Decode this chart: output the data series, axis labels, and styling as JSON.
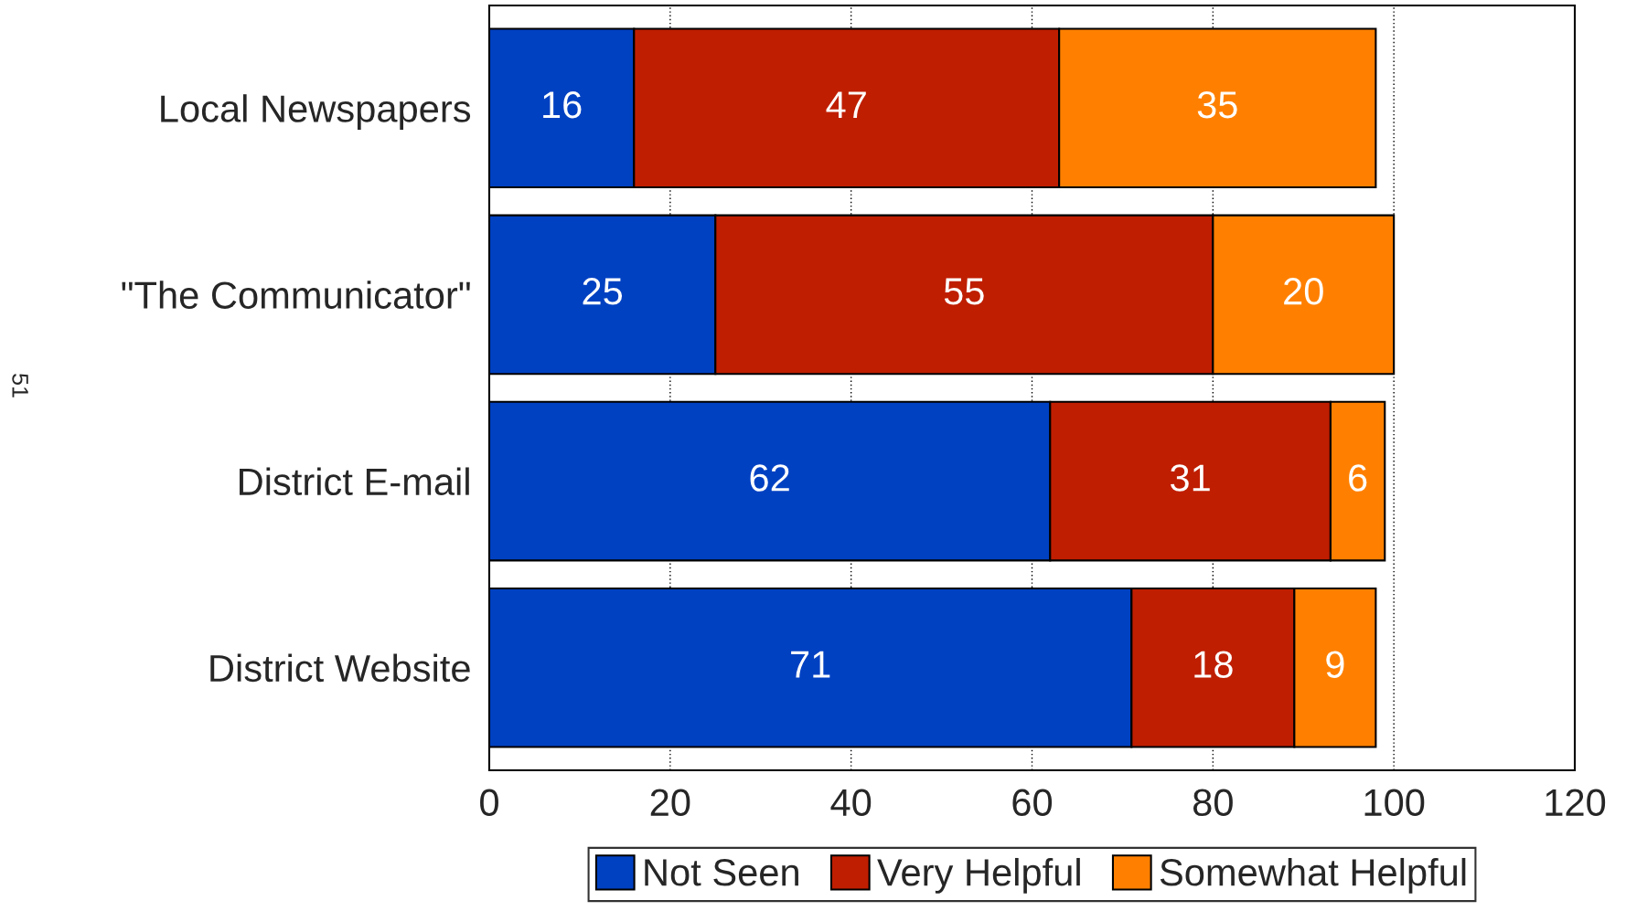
{
  "chart_data": {
    "type": "bar",
    "orientation": "horizontal",
    "stacked": true,
    "categories": [
      "Local Newspapers",
      "\"The Communicator\"",
      "District E-mail",
      "District Website"
    ],
    "series": [
      {
        "name": "Not Seen",
        "color": "#0041c2",
        "values": [
          16,
          25,
          62,
          71
        ]
      },
      {
        "name": "Very Helpful",
        "color": "#bf1e00",
        "values": [
          47,
          55,
          31,
          18
        ]
      },
      {
        "name": "Somewhat Helpful",
        "color": "#ff8000",
        "values": [
          35,
          20,
          6,
          9
        ]
      }
    ],
    "xlim": [
      0,
      120
    ],
    "xticks": [
      0,
      20,
      40,
      60,
      80,
      100,
      120
    ],
    "grid": "x",
    "legend": "bottom",
    "data_labels": true,
    "annotations": [
      "51"
    ]
  }
}
